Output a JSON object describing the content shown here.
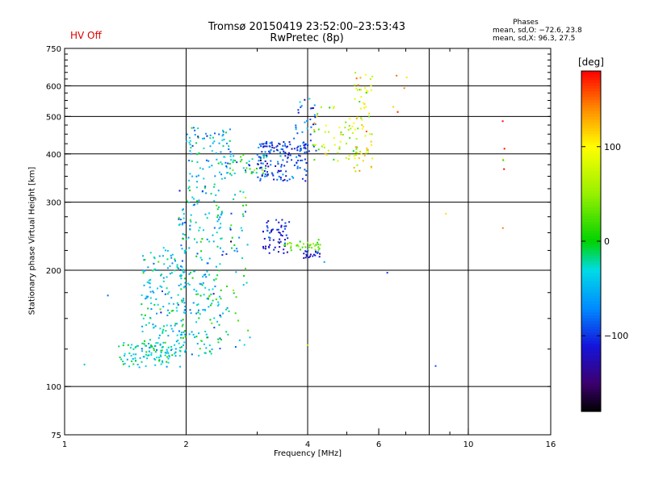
{
  "status": {
    "hv": "HV Off",
    "hv_color": "#dd0000"
  },
  "header": {
    "title": "Tromsø 20150419 23:52:00–23:53:43",
    "subtitle": "RwPretec (8p)"
  },
  "phases": {
    "title": "Phases",
    "line_o": "mean, sd,O: −72.6, 23.8",
    "line_x": "mean, sd,X:  96.3, 27.5"
  },
  "colorbar": {
    "unit": "[deg]",
    "ticks": [
      {
        "value": 100,
        "label": "100"
      },
      {
        "value": 0,
        "label": "0"
      },
      {
        "value": -100,
        "label": "−100"
      }
    ],
    "range": [
      -180,
      180
    ]
  },
  "chart_data": {
    "type": "scatter",
    "title": "Tromsø 20150419 23:52:00–23:53:43",
    "subtitle": "RwPretec (8p)",
    "xlabel": "Frequency [MHz]",
    "ylabel": "Stationary phase Virtual Height [km]",
    "xscale": "log",
    "yscale": "log",
    "xlim": [
      1,
      16
    ],
    "ylim": [
      75,
      750
    ],
    "xticks": [
      1,
      2,
      4,
      6,
      10,
      16
    ],
    "xtick_labels": [
      "1",
      "2",
      "4",
      "6",
      "10",
      "16"
    ],
    "yticks": [
      75,
      100,
      200,
      300,
      400,
      500,
      600,
      750
    ],
    "ytick_labels": [
      "75",
      "100",
      "200",
      "300",
      "400",
      "500",
      "600",
      "750"
    ],
    "x_gridlines": [
      2,
      4,
      8,
      10
    ],
    "y_gridlines": [
      100,
      200,
      300,
      400,
      500,
      600
    ],
    "grid": true,
    "color_variable": "phase [deg]",
    "clusters": [
      {
        "x_range": [
          1.35,
          1.95
        ],
        "y_range": [
          112,
          130
        ],
        "phase_mean": -30,
        "phase_sd": 20,
        "count": 90
      },
      {
        "x_range": [
          1.55,
          2.0
        ],
        "y_range": [
          120,
          230
        ],
        "phase_mean": -35,
        "phase_sd": 25,
        "count": 180
      },
      {
        "x_range": [
          1.9,
          2.45
        ],
        "y_range": [
          120,
          340
        ],
        "phase_mean": -40,
        "phase_sd": 30,
        "count": 220
      },
      {
        "x_range": [
          2.4,
          2.9
        ],
        "y_range": [
          125,
          320
        ],
        "phase_mean": -30,
        "phase_sd": 35,
        "count": 60
      },
      {
        "x_range": [
          2.0,
          2.6
        ],
        "y_range": [
          340,
          470
        ],
        "phase_mean": -50,
        "phase_sd": 30,
        "count": 90
      },
      {
        "x_range": [
          2.6,
          3.2
        ],
        "y_range": [
          350,
          400
        ],
        "phase_mean": -20,
        "phase_sd": 50,
        "count": 40
      },
      {
        "x_range": [
          3.0,
          4.0
        ],
        "y_range": [
          340,
          430
        ],
        "phase_mean": -95,
        "phase_sd": 20,
        "count": 150
      },
      {
        "x_range": [
          3.7,
          4.2
        ],
        "y_range": [
          400,
          560
        ],
        "phase_mean": -90,
        "phase_sd": 30,
        "count": 40
      },
      {
        "x_range": [
          4.1,
          5.2
        ],
        "y_range": [
          380,
          530
        ],
        "phase_mean": 60,
        "phase_sd": 40,
        "count": 50
      },
      {
        "x_range": [
          5.2,
          5.8
        ],
        "y_range": [
          360,
          660
        ],
        "phase_mean": 90,
        "phase_sd": 30,
        "count": 70
      },
      {
        "x_range": [
          3.1,
          3.6
        ],
        "y_range": [
          220,
          270
        ],
        "phase_mean": -110,
        "phase_sd": 15,
        "count": 60
      },
      {
        "x_range": [
          3.5,
          4.3
        ],
        "y_range": [
          225,
          240
        ],
        "phase_mean": 30,
        "phase_sd": 15,
        "count": 35
      },
      {
        "x_range": [
          3.9,
          4.3
        ],
        "y_range": [
          215,
          225
        ],
        "phase_mean": -110,
        "phase_sd": 10,
        "count": 20
      },
      {
        "x_range": [
          6.5,
          7.1
        ],
        "y_range": [
          500,
          640
        ],
        "phase_mean": 140,
        "phase_sd": 20,
        "count": 6
      },
      {
        "x_range": [
          12.1,
          12.3
        ],
        "y_range": [
          230,
          530
        ],
        "phase_mean": 120,
        "phase_sd": 60,
        "count": 6
      }
    ],
    "isolated_points": [
      {
        "x": 1.12,
        "y": 114,
        "phase": -40
      },
      {
        "x": 1.28,
        "y": 172,
        "phase": -80
      },
      {
        "x": 8.3,
        "y": 113,
        "phase": -90
      },
      {
        "x": 8.8,
        "y": 280,
        "phase": 110
      },
      {
        "x": 6.3,
        "y": 197,
        "phase": -100
      },
      {
        "x": 4.0,
        "y": 128,
        "phase": 60
      },
      {
        "x": 4.4,
        "y": 210,
        "phase": -60
      }
    ]
  }
}
